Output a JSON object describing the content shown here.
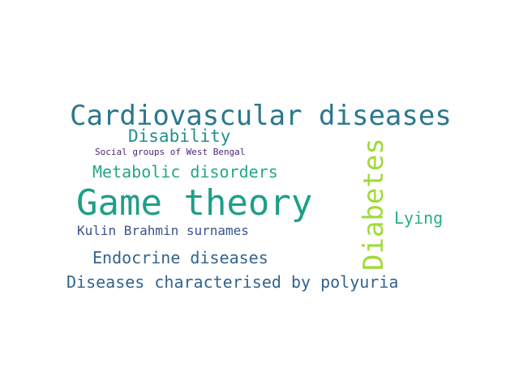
{
  "words": [
    {
      "text": "Cardiovascular diseases",
      "color": "#2a788e"
    },
    {
      "text": "Disability",
      "color": "#21918c"
    },
    {
      "text": "Social groups of West Bengal",
      "color": "#482677"
    },
    {
      "text": "Metabolic disorders",
      "color": "#22a884"
    },
    {
      "text": "Game theory",
      "color": "#1f9e89"
    },
    {
      "text": "Kulin Brahmin surnames",
      "color": "#3b528b"
    },
    {
      "text": "Endocrine diseases",
      "color": "#33638d"
    },
    {
      "text": "Diseases characterised by polyuria",
      "color": "#33638d"
    },
    {
      "text": "Lying",
      "color": "#29af7f"
    },
    {
      "text": "Diabetes",
      "color": "#a0da39"
    }
  ]
}
